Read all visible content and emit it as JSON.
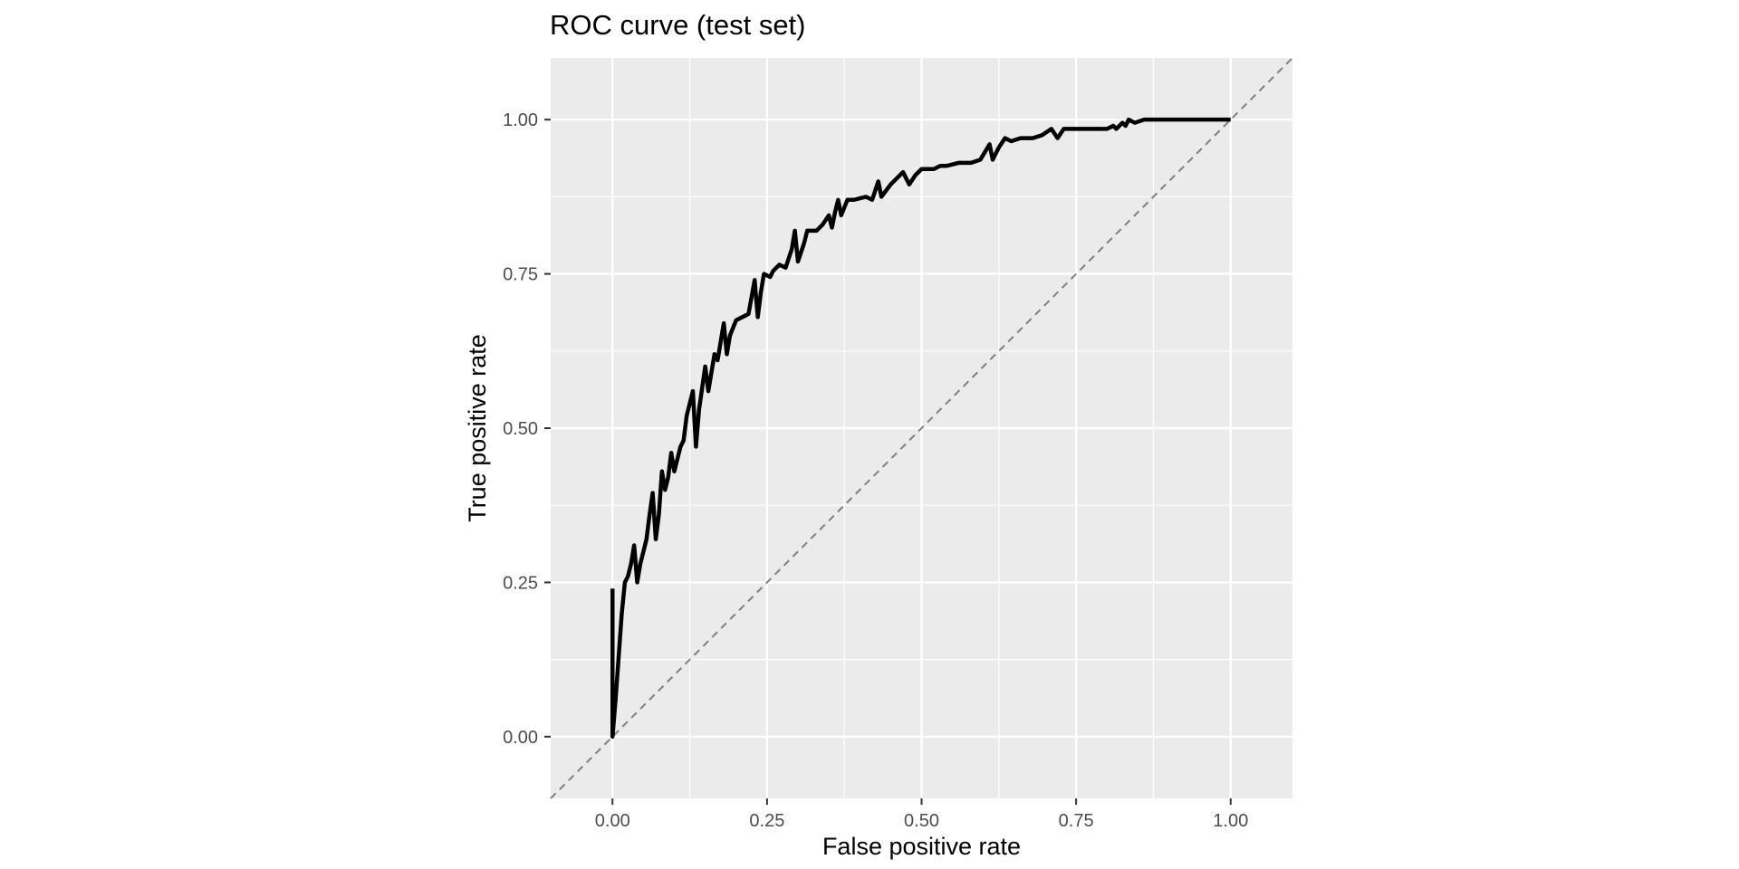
{
  "chart_data": {
    "type": "line",
    "title": "ROC curve (test set)",
    "xlabel": "False positive rate",
    "ylabel": "True positive rate",
    "xlim": [
      -0.1,
      1.1
    ],
    "ylim": [
      -0.1,
      1.1
    ],
    "x_ticks": [
      0.0,
      0.25,
      0.5,
      0.75,
      1.0
    ],
    "x_tick_labels": [
      "0.00",
      "0.25",
      "0.50",
      "0.75",
      "1.00"
    ],
    "y_ticks": [
      0.0,
      0.25,
      0.5,
      0.75,
      1.0
    ],
    "y_tick_labels": [
      "0.00",
      "0.25",
      "0.50",
      "0.75",
      "1.00"
    ],
    "grid": true,
    "panel_color": "#ebebeb",
    "series": [
      {
        "line_color": "#000000",
        "points": [
          [
            0.0,
            0.24
          ],
          [
            0.0,
            0.0
          ],
          [
            0.005,
            0.06
          ],
          [
            0.01,
            0.13
          ],
          [
            0.015,
            0.2
          ],
          [
            0.02,
            0.25
          ],
          [
            0.025,
            0.26
          ],
          [
            0.03,
            0.28
          ],
          [
            0.035,
            0.31
          ],
          [
            0.04,
            0.25
          ],
          [
            0.045,
            0.28
          ],
          [
            0.05,
            0.3
          ],
          [
            0.055,
            0.32
          ],
          [
            0.06,
            0.36
          ],
          [
            0.065,
            0.395
          ],
          [
            0.07,
            0.32
          ],
          [
            0.075,
            0.36
          ],
          [
            0.08,
            0.43
          ],
          [
            0.085,
            0.4
          ],
          [
            0.09,
            0.42
          ],
          [
            0.095,
            0.46
          ],
          [
            0.1,
            0.43
          ],
          [
            0.105,
            0.45
          ],
          [
            0.11,
            0.47
          ],
          [
            0.115,
            0.48
          ],
          [
            0.12,
            0.52
          ],
          [
            0.13,
            0.56
          ],
          [
            0.135,
            0.47
          ],
          [
            0.14,
            0.53
          ],
          [
            0.15,
            0.6
          ],
          [
            0.155,
            0.56
          ],
          [
            0.16,
            0.59
          ],
          [
            0.165,
            0.62
          ],
          [
            0.17,
            0.61
          ],
          [
            0.18,
            0.67
          ],
          [
            0.185,
            0.62
          ],
          [
            0.19,
            0.65
          ],
          [
            0.2,
            0.675
          ],
          [
            0.21,
            0.68
          ],
          [
            0.22,
            0.685
          ],
          [
            0.23,
            0.74
          ],
          [
            0.235,
            0.68
          ],
          [
            0.24,
            0.72
          ],
          [
            0.245,
            0.75
          ],
          [
            0.255,
            0.745
          ],
          [
            0.26,
            0.755
          ],
          [
            0.27,
            0.765
          ],
          [
            0.28,
            0.76
          ],
          [
            0.29,
            0.79
          ],
          [
            0.295,
            0.82
          ],
          [
            0.3,
            0.77
          ],
          [
            0.31,
            0.8
          ],
          [
            0.315,
            0.82
          ],
          [
            0.33,
            0.82
          ],
          [
            0.34,
            0.83
          ],
          [
            0.35,
            0.845
          ],
          [
            0.355,
            0.825
          ],
          [
            0.36,
            0.85
          ],
          [
            0.365,
            0.87
          ],
          [
            0.37,
            0.845
          ],
          [
            0.38,
            0.87
          ],
          [
            0.39,
            0.87
          ],
          [
            0.41,
            0.875
          ],
          [
            0.42,
            0.87
          ],
          [
            0.43,
            0.9
          ],
          [
            0.435,
            0.875
          ],
          [
            0.45,
            0.895
          ],
          [
            0.46,
            0.905
          ],
          [
            0.47,
            0.915
          ],
          [
            0.48,
            0.895
          ],
          [
            0.49,
            0.91
          ],
          [
            0.5,
            0.92
          ],
          [
            0.52,
            0.92
          ],
          [
            0.53,
            0.925
          ],
          [
            0.54,
            0.925
          ],
          [
            0.56,
            0.93
          ],
          [
            0.58,
            0.93
          ],
          [
            0.595,
            0.935
          ],
          [
            0.61,
            0.96
          ],
          [
            0.615,
            0.935
          ],
          [
            0.625,
            0.955
          ],
          [
            0.635,
            0.97
          ],
          [
            0.645,
            0.965
          ],
          [
            0.66,
            0.97
          ],
          [
            0.68,
            0.97
          ],
          [
            0.695,
            0.975
          ],
          [
            0.71,
            0.985
          ],
          [
            0.72,
            0.97
          ],
          [
            0.73,
            0.985
          ],
          [
            0.75,
            0.985
          ],
          [
            0.8,
            0.985
          ],
          [
            0.81,
            0.99
          ],
          [
            0.815,
            0.985
          ],
          [
            0.825,
            0.995
          ],
          [
            0.83,
            0.99
          ],
          [
            0.835,
            1.0
          ],
          [
            0.845,
            0.995
          ],
          [
            0.86,
            1.0
          ],
          [
            0.9,
            1.0
          ],
          [
            1.0,
            1.0
          ]
        ]
      }
    ],
    "reference_line": {
      "type": "diagonal",
      "color": "#7f7f7f",
      "style": "dashed"
    }
  }
}
